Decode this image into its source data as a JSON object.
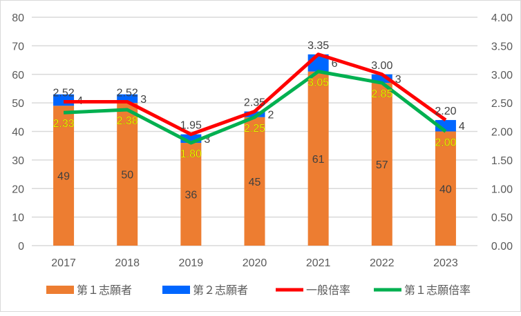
{
  "chart_data": {
    "type": "bar+line",
    "categories": [
      "2017",
      "2018",
      "2019",
      "2020",
      "2021",
      "2022",
      "2023"
    ],
    "bar_series": [
      {
        "name": "第１志願者",
        "color": "#ED7D31",
        "values": [
          49,
          50,
          36,
          45,
          61,
          57,
          40
        ]
      },
      {
        "name": "第２志願者",
        "color": "#0066FF",
        "values": [
          4,
          3,
          3,
          2,
          6,
          3,
          4
        ]
      }
    ],
    "line_series": [
      {
        "name": "一般倍率",
        "color": "#FF0000",
        "values": [
          2.52,
          2.52,
          1.95,
          2.35,
          3.35,
          3.0,
          2.2
        ],
        "labels": [
          "2.52",
          "2.52",
          "1.95",
          "2.35",
          "3.35",
          "3.00",
          "2.20"
        ]
      },
      {
        "name": "第１志願倍率",
        "color": "#00B050",
        "values": [
          2.33,
          2.38,
          1.8,
          2.25,
          3.05,
          2.85,
          2.0
        ],
        "labels": [
          "2.33",
          "2.38",
          "1.80",
          "2.25",
          "3.05",
          "2.85",
          "2.00"
        ]
      }
    ],
    "left_axis": {
      "ylim": [
        0,
        80
      ],
      "ticks": [
        "0",
        "10",
        "20",
        "30",
        "40",
        "50",
        "60",
        "70",
        "80"
      ]
    },
    "right_axis": {
      "ylim": [
        0,
        4
      ],
      "ticks": [
        "0.00",
        "0.50",
        "1.00",
        "1.50",
        "2.00",
        "2.50",
        "3.00",
        "3.50",
        "4.00"
      ]
    },
    "grid": true,
    "legend": "bottom"
  }
}
